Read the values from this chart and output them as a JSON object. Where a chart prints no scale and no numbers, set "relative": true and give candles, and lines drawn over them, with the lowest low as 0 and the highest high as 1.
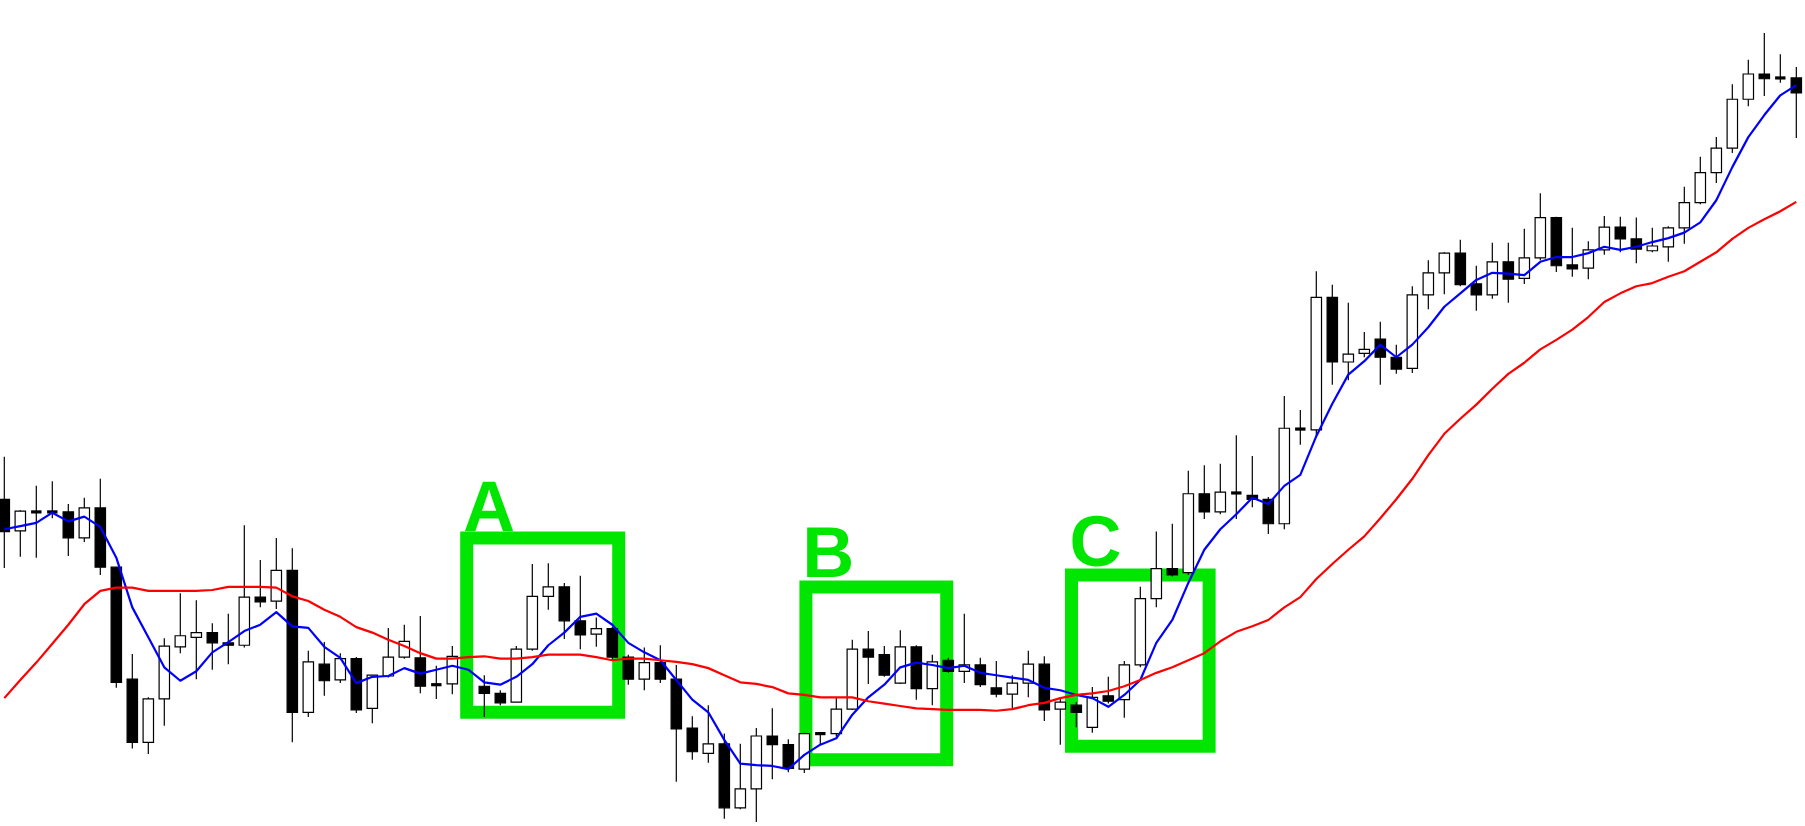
{
  "chart_data": {
    "type": "candlestick",
    "relative": true,
    "tick_labels": false,
    "categories": [
      null,
      null,
      null,
      null,
      null,
      null,
      null,
      null,
      null,
      null,
      null,
      null,
      null,
      null,
      null,
      null,
      null,
      null,
      null,
      null,
      null,
      null,
      null,
      null,
      null,
      null,
      null,
      null,
      null,
      null,
      null,
      null,
      null,
      null,
      null,
      null,
      null,
      null,
      null,
      null,
      null,
      null,
      null,
      null,
      null,
      null,
      null,
      null,
      null,
      null,
      null,
      null,
      null,
      null,
      null,
      null,
      null,
      null,
      null,
      null,
      null,
      null,
      null,
      null,
      null,
      null,
      null,
      null,
      null,
      null,
      null,
      null,
      null,
      null,
      null,
      null,
      null,
      null,
      null,
      null,
      null,
      null,
      null,
      null,
      null,
      null,
      null,
      null,
      null,
      null,
      null,
      null,
      null,
      null,
      null,
      null,
      null,
      null,
      null,
      null,
      null,
      null,
      null,
      null,
      null,
      null,
      null,
      null,
      null,
      null,
      null,
      null,
      null
    ],
    "ohlc": [
      [
        0.409,
        0.463,
        0.322,
        0.368
      ],
      [
        0.369,
        0.395,
        0.336,
        0.394
      ],
      [
        0.393,
        0.426,
        0.335,
        0.393
      ],
      [
        0.393,
        0.432,
        0.385,
        0.393
      ],
      [
        0.393,
        0.403,
        0.337,
        0.36
      ],
      [
        0.36,
        0.411,
        0.355,
        0.398
      ],
      [
        0.398,
        0.435,
        0.313,
        0.323
      ],
      [
        0.323,
        0.323,
        0.17,
        0.177
      ],
      [
        0.181,
        0.213,
        0.093,
        0.101
      ],
      [
        0.101,
        0.158,
        0.086,
        0.156
      ],
      [
        0.156,
        0.233,
        0.122,
        0.223
      ],
      [
        0.222,
        0.29,
        0.214,
        0.236
      ],
      [
        0.234,
        0.281,
        0.181,
        0.24
      ],
      [
        0.24,
        0.252,
        0.193,
        0.227
      ],
      [
        0.227,
        0.264,
        0.2,
        0.224
      ],
      [
        0.224,
        0.376,
        0.221,
        0.285
      ],
      [
        0.285,
        0.332,
        0.272,
        0.279
      ],
      [
        0.28,
        0.36,
        0.27,
        0.319
      ],
      [
        0.319,
        0.347,
        0.101,
        0.139
      ],
      [
        0.139,
        0.217,
        0.133,
        0.203
      ],
      [
        0.2,
        0.228,
        0.16,
        0.179
      ],
      [
        0.18,
        0.214,
        0.176,
        0.207
      ],
      [
        0.207,
        0.209,
        0.138,
        0.142
      ],
      [
        0.144,
        0.186,
        0.125,
        0.186
      ],
      [
        0.185,
        0.246,
        0.183,
        0.209
      ],
      [
        0.209,
        0.25,
        0.207,
        0.229
      ],
      [
        0.208,
        0.261,
        0.163,
        0.172
      ],
      [
        0.174,
        0.198,
        0.156,
        0.174
      ],
      [
        0.175,
        0.223,
        0.162,
        0.21
      ],
      null,
      [
        0.172,
        0.186,
        0.133,
        0.163
      ],
      [
        0.163,
        0.167,
        0.148,
        0.151
      ],
      [
        0.152,
        0.223,
        0.152,
        0.219
      ],
      [
        0.219,
        0.327,
        0.217,
        0.286
      ],
      [
        0.286,
        0.328,
        0.269,
        0.298
      ],
      [
        0.298,
        0.303,
        0.232,
        0.255
      ],
      [
        0.255,
        0.312,
        0.219,
        0.237
      ],
      [
        0.238,
        0.259,
        0.222,
        0.245
      ],
      [
        0.245,
        0.247,
        0.205,
        0.209
      ],
      [
        0.209,
        0.212,
        0.174,
        0.181
      ],
      [
        0.181,
        0.221,
        0.167,
        0.202
      ],
      [
        0.202,
        0.224,
        0.176,
        0.181
      ],
      [
        0.181,
        0.199,
        0.051,
        0.118
      ],
      [
        0.119,
        0.134,
        0.079,
        0.089
      ],
      [
        0.087,
        0.148,
        0.075,
        0.099
      ],
      [
        0.099,
        0.112,
        0.004,
        0.018
      ],
      [
        0.018,
        0.099,
        0.016,
        0.042
      ],
      [
        0.042,
        0.119,
        0,
        0.109
      ],
      [
        0.109,
        0.144,
        0.054,
        0.098
      ],
      [
        0.098,
        0.105,
        0.063,
        0.068
      ],
      [
        0.067,
        0.113,
        0.062,
        0.112
      ],
      [
        0.112,
        0.114,
        0.098,
        0.112
      ],
      [
        0.112,
        0.158,
        0.108,
        0.143
      ],
      [
        0.143,
        0.231,
        0.142,
        0.219
      ],
      [
        0.219,
        0.242,
        0.175,
        0.209
      ],
      [
        0.212,
        0.223,
        0.184,
        0.186
      ],
      [
        0.176,
        0.243,
        0.175,
        0.222
      ],
      [
        0.222,
        0.224,
        0.155,
        0.169
      ],
      [
        0.169,
        0.212,
        0.148,
        0.203
      ],
      [
        0.205,
        0.208,
        0.189,
        0.191
      ],
      [
        0.191,
        0.264,
        0.176,
        0.199
      ],
      [
        0.199,
        0.208,
        0.171,
        0.174
      ],
      [
        0.17,
        0.204,
        0.158,
        0.162
      ],
      [
        0.162,
        0.186,
        0.142,
        0.176
      ],
      [
        0.176,
        0.217,
        0.158,
        0.2
      ],
      [
        0.2,
        0.21,
        0.128,
        0.142
      ],
      [
        0.143,
        0.158,
        0.098,
        0.152
      ],
      [
        0.148,
        0.152,
        0.12,
        0.139
      ],
      [
        0.12,
        0.171,
        0.113,
        0.158
      ],
      [
        0.16,
        0.184,
        0.15,
        0.153
      ],
      [
        0.155,
        0.204,
        0.132,
        0.199
      ],
      [
        0.199,
        0.298,
        0.196,
        0.283
      ],
      [
        0.283,
        0.368,
        0.272,
        0.321
      ],
      [
        0.321,
        0.378,
        0.311,
        0.313
      ],
      [
        0.316,
        0.445,
        0.313,
        0.416
      ],
      [
        0.416,
        0.452,
        0.384,
        0.393
      ],
      [
        0.393,
        0.454,
        0.39,
        0.418
      ],
      [
        0.417,
        0.49,
        0.384,
        0.417
      ],
      [
        0.414,
        0.464,
        0.399,
        0.409
      ],
      [
        0.409,
        0.412,
        0.365,
        0.378
      ],
      [
        0.378,
        0.54,
        0.371,
        0.499
      ],
      [
        0.498,
        0.522,
        0.478,
        0.498
      ],
      [
        0.497,
        0.698,
        0.489,
        0.665
      ],
      [
        0.665,
        0.681,
        0.554,
        0.583
      ],
      [
        0.583,
        0.658,
        0.56,
        0.593
      ],
      [
        0.594,
        0.621,
        0.589,
        0.599
      ],
      [
        0.612,
        0.634,
        0.554,
        0.589
      ],
      [
        0.589,
        0.605,
        0.568,
        0.574
      ],
      [
        0.575,
        0.679,
        0.569,
        0.668
      ],
      [
        0.668,
        0.712,
        0.65,
        0.696
      ],
      [
        0.696,
        0.722,
        0.669,
        0.721
      ],
      [
        0.721,
        0.738,
        0.679,
        0.681
      ],
      [
        0.682,
        0.705,
        0.648,
        0.668
      ],
      [
        0.668,
        0.734,
        0.663,
        0.71
      ],
      [
        0.71,
        0.734,
        0.658,
        0.688
      ],
      [
        0.689,
        0.752,
        0.682,
        0.715
      ],
      [
        0.715,
        0.797,
        0.712,
        0.766
      ],
      [
        0.766,
        0.767,
        0.697,
        0.705
      ],
      [
        0.706,
        0.753,
        0.691,
        0.701
      ],
      [
        0.702,
        0.736,
        0.688,
        0.725
      ],
      [
        0.725,
        0.768,
        0.719,
        0.754
      ],
      [
        0.754,
        0.767,
        0.722,
        0.739
      ],
      [
        0.739,
        0.766,
        0.708,
        0.726
      ],
      [
        0.724,
        0.753,
        0.722,
        0.73
      ],
      [
        0.729,
        0.755,
        0.71,
        0.753
      ],
      [
        0.753,
        0.805,
        0.733,
        0.785
      ],
      [
        0.785,
        0.843,
        0.783,
        0.823
      ],
      [
        0.823,
        0.868,
        0.81,
        0.854
      ],
      [
        0.854,
        0.935,
        0.848,
        0.916
      ],
      [
        0.916,
        0.966,
        0.907,
        0.948
      ],
      [
        0.948,
        1,
        0.92,
        0.942
      ],
      [
        0.943,
        0.973,
        0.937,
        0.943
      ],
      [
        0.943,
        0.957,
        0.867,
        0.924
      ]
    ],
    "series": [
      {
        "type": "line",
        "color": "#0000ff",
        "values": [
          0.371,
          0.375,
          0.379,
          0.392,
          0.381,
          0.387,
          0.374,
          0.335,
          0.272,
          0.234,
          0.196,
          0.179,
          0.191,
          0.215,
          0.228,
          0.242,
          0.25,
          0.266,
          0.248,
          0.246,
          0.222,
          0.208,
          0.176,
          0.184,
          0.185,
          0.195,
          0.188,
          0.193,
          0.198,
          0.193,
          0.177,
          0.174,
          0.184,
          0.2,
          0.224,
          0.24,
          0.26,
          0.264,
          0.25,
          0.227,
          0.215,
          0.205,
          0.18,
          0.155,
          0.139,
          0.104,
          0.074,
          0.072,
          0.071,
          0.067,
          0.085,
          0.098,
          0.106,
          0.136,
          0.158,
          0.174,
          0.196,
          0.202,
          0.199,
          0.195,
          0.198,
          0.189,
          0.186,
          0.183,
          0.18,
          0.17,
          0.167,
          0.161,
          0.157,
          0.146,
          0.161,
          0.18,
          0.227,
          0.256,
          0.303,
          0.345,
          0.371,
          0.39,
          0.411,
          0.403,
          0.426,
          0.44,
          0.489,
          0.53,
          0.567,
          0.584,
          0.605,
          0.589,
          0.605,
          0.627,
          0.653,
          0.67,
          0.687,
          0.696,
          0.695,
          0.693,
          0.71,
          0.716,
          0.716,
          0.721,
          0.729,
          0.725,
          0.729,
          0.735,
          0.74,
          0.747,
          0.76,
          0.788,
          0.83,
          0.868,
          0.896,
          0.921,
          0.934
        ]
      },
      {
        "type": "line",
        "color": "#ff0000",
        "values": [
          0.157,
          0.18,
          0.202,
          0.226,
          0.25,
          0.276,
          0.293,
          0.297,
          0.297,
          0.293,
          0.293,
          0.293,
          0.293,
          0.294,
          0.298,
          0.298,
          0.298,
          0.297,
          0.286,
          0.28,
          0.269,
          0.26,
          0.247,
          0.24,
          0.231,
          0.223,
          0.214,
          0.207,
          0.207,
          0.209,
          0.21,
          0.207,
          0.207,
          0.209,
          0.212,
          0.212,
          0.212,
          0.209,
          0.205,
          0.207,
          0.207,
          0.205,
          0.203,
          0.2,
          0.195,
          0.186,
          0.177,
          0.175,
          0.171,
          0.163,
          0.161,
          0.158,
          0.158,
          0.158,
          0.153,
          0.15,
          0.147,
          0.144,
          0.143,
          0.142,
          0.142,
          0.142,
          0.141,
          0.143,
          0.148,
          0.151,
          0.157,
          0.161,
          0.163,
          0.166,
          0.172,
          0.18,
          0.189,
          0.196,
          0.205,
          0.214,
          0.229,
          0.241,
          0.248,
          0.256,
          0.272,
          0.285,
          0.308,
          0.327,
          0.345,
          0.362,
          0.385,
          0.409,
          0.435,
          0.465,
          0.492,
          0.511,
          0.529,
          0.549,
          0.568,
          0.582,
          0.599,
          0.611,
          0.624,
          0.64,
          0.659,
          0.67,
          0.679,
          0.683,
          0.691,
          0.698,
          0.71,
          0.722,
          0.739,
          0.753,
          0.764,
          0.774,
          0.786
        ]
      }
    ],
    "annotations": [
      "A",
      "B",
      "C"
    ]
  }
}
